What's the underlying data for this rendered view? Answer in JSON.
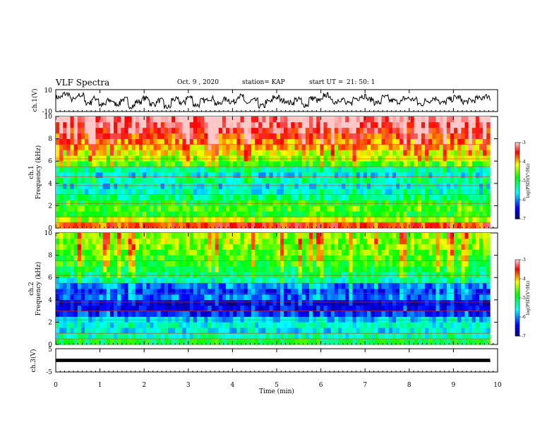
{
  "header": {
    "title": "VLF Spectra",
    "date": "Oct. 9 , 2020",
    "station": "station= KAP",
    "start_label": "start UT =",
    "start_time": "21: 50: 1"
  },
  "chart_data": [
    {
      "type": "line",
      "panel": "ch1-waveform",
      "ylabel": "ch.1(V)",
      "ylim": [
        -10,
        10
      ],
      "y_ticks": [
        "10",
        "-10"
      ],
      "x_range_min": [
        0,
        9.83
      ],
      "description_values": "noisy voltage trace fluctuating mostly between about -8 and +8 V, mean near +1 V",
      "samples": [
        3,
        6,
        1,
        5,
        -2,
        2,
        -4,
        0,
        -3,
        1,
        -5,
        -1,
        2,
        -3,
        0,
        -6,
        1,
        -2,
        3,
        -4,
        0,
        2,
        -3,
        1,
        -1,
        4,
        -2,
        0,
        -5,
        -1,
        3,
        0,
        -2,
        1,
        -4,
        2,
        0,
        5,
        -1,
        1,
        -3,
        2,
        4,
        1,
        -2,
        3,
        0,
        -1,
        2,
        1,
        -3,
        0,
        2,
        -2,
        1,
        3,
        -1,
        0,
        2,
        4,
        1
      ]
    },
    {
      "type": "heatmap",
      "panel": "ch1-spectrogram",
      "ylabel": "ch.1",
      "ylabel2": "Frequency (kHz)",
      "ylim": [
        0,
        10
      ],
      "y_ticks": [
        "0",
        "2",
        "4",
        "6",
        "8",
        "10"
      ],
      "x_range_min": [
        0,
        9.83
      ],
      "colorbar": {
        "label": "log(PSD)(V²/Hz)",
        "range": [
          -7,
          -3
        ],
        "ticks": [
          "-3",
          "-4",
          "-5",
          "-6",
          "-7"
        ]
      },
      "band_levels_kHz": [
        {
          "f": 0.25,
          "v": -3.6
        },
        {
          "f": 0.75,
          "v": -4.3
        },
        {
          "f": 1.25,
          "v": -4.8
        },
        {
          "f": 1.75,
          "v": -4.7
        },
        {
          "f": 2.25,
          "v": -4.9
        },
        {
          "f": 2.75,
          "v": -5.2
        },
        {
          "f": 3.25,
          "v": -5.5
        },
        {
          "f": 3.75,
          "v": -5.6
        },
        {
          "f": 4.25,
          "v": -5.3
        },
        {
          "f": 4.75,
          "v": -5.6
        },
        {
          "f": 5.25,
          "v": -5.4
        },
        {
          "f": 5.75,
          "v": -4.7
        },
        {
          "f": 6.25,
          "v": -4.4
        },
        {
          "f": 6.75,
          "v": -4.2
        },
        {
          "f": 7.25,
          "v": -4.0
        },
        {
          "f": 7.75,
          "v": -3.8
        },
        {
          "f": 8.25,
          "v": -3.6
        },
        {
          "f": 8.75,
          "v": -3.4
        },
        {
          "f": 9.25,
          "v": -3.2
        },
        {
          "f": 9.75,
          "v": -3.1
        }
      ]
    },
    {
      "type": "heatmap",
      "panel": "ch2-spectrogram",
      "ylabel": "ch.2",
      "ylabel2": "Frequency (kHz)",
      "ylim": [
        0,
        10
      ],
      "y_ticks": [
        "0",
        "2",
        "4",
        "6",
        "8",
        "10"
      ],
      "x_range_min": [
        0,
        9.83
      ],
      "colorbar": {
        "label": "log(PSD)(V²/Hz)",
        "range": [
          -7,
          -3
        ],
        "ticks": [
          "-3",
          "-4",
          "-5",
          "-6",
          "-7"
        ]
      },
      "band_levels_kHz": [
        {
          "f": 0.25,
          "v": -5.0
        },
        {
          "f": 0.75,
          "v": -5.4
        },
        {
          "f": 1.25,
          "v": -5.6
        },
        {
          "f": 1.75,
          "v": -5.5
        },
        {
          "f": 2.25,
          "v": -5.7
        },
        {
          "f": 2.75,
          "v": -6.3
        },
        {
          "f": 3.25,
          "v": -6.5
        },
        {
          "f": 3.75,
          "v": -6.6
        },
        {
          "f": 4.25,
          "v": -6.1
        },
        {
          "f": 4.75,
          "v": -6.3
        },
        {
          "f": 5.25,
          "v": -6.0
        },
        {
          "f": 5.75,
          "v": -5.4
        },
        {
          "f": 6.25,
          "v": -5.2
        },
        {
          "f": 6.75,
          "v": -5.0
        },
        {
          "f": 7.25,
          "v": -4.8
        },
        {
          "f": 7.75,
          "v": -4.7
        },
        {
          "f": 8.25,
          "v": -4.6
        },
        {
          "f": 8.75,
          "v": -4.5
        },
        {
          "f": 9.25,
          "v": -4.4
        },
        {
          "f": 9.75,
          "v": -4.4
        }
      ]
    },
    {
      "type": "line",
      "panel": "ch3-waveform",
      "ylabel": "ch.3(V)",
      "ylim": [
        -5,
        5
      ],
      "y_ticks": [
        "5",
        "-5"
      ],
      "x_range_min": [
        0,
        9.83
      ],
      "description_values": "near-constant trace at about 0 V with small fast oscillation",
      "samples": [
        0,
        0,
        0,
        0,
        0
      ]
    }
  ],
  "x_axis": {
    "label": "Time (min)",
    "ticks": [
      "0",
      "1",
      "2",
      "3",
      "4",
      "5",
      "6",
      "7",
      "8",
      "9",
      "10"
    ],
    "range": [
      0,
      10
    ]
  },
  "colors": {
    "scale": [
      "#00007f",
      "#0000ff",
      "#00ffff",
      "#00ff00",
      "#ffff00",
      "#ff0000",
      "#ffffff"
    ]
  }
}
